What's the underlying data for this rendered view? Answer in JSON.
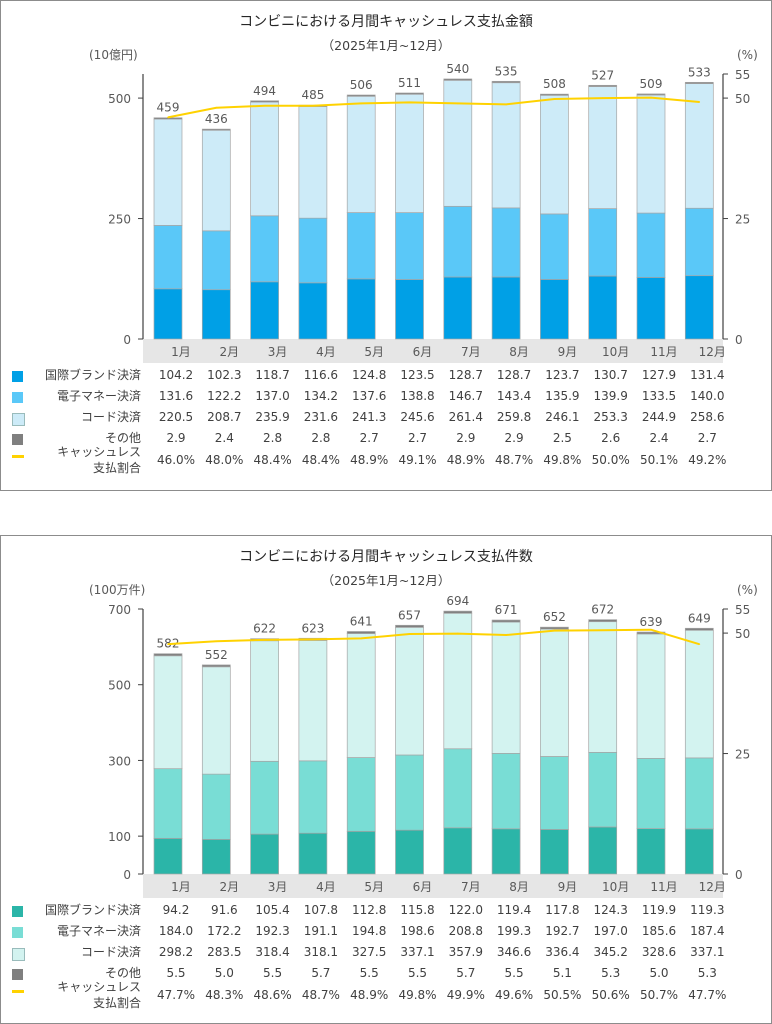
{
  "chart_data": [
    {
      "type": "bar",
      "title": "コンビニにおける月間キャッシュレス支払金額",
      "subtitle": "（2025年1月~12月）",
      "ylabel": "(10億円)",
      "y2label": "(%)",
      "ylim": [
        0,
        550
      ],
      "yticks": [
        0,
        250,
        500
      ],
      "y2lim": [
        0,
        55
      ],
      "y2ticks": [
        0,
        25,
        50,
        55
      ],
      "categories": [
        "1月",
        "2月",
        "3月",
        "4月",
        "5月",
        "6月",
        "7月",
        "8月",
        "9月",
        "10月",
        "11月",
        "12月"
      ],
      "series": [
        {
          "name": "国際ブランド決済",
          "color": "#00a0e6",
          "values": [
            104.2,
            102.3,
            118.7,
            116.6,
            124.8,
            123.5,
            128.7,
            128.7,
            123.7,
            130.7,
            127.9,
            131.4
          ]
        },
        {
          "name": "電子マネー決済",
          "color": "#5ac8f8",
          "values": [
            131.6,
            122.2,
            137.0,
            134.2,
            137.6,
            138.8,
            146.7,
            143.4,
            135.9,
            139.9,
            133.5,
            140.0
          ]
        },
        {
          "name": "コード決済",
          "color": "#cdebf8",
          "values": [
            220.5,
            208.7,
            235.9,
            231.6,
            241.3,
            245.6,
            261.4,
            259.8,
            246.1,
            253.3,
            244.9,
            258.6
          ]
        },
        {
          "name": "その他",
          "color": "#7f7f7f",
          "values": [
            2.9,
            2.4,
            2.8,
            2.8,
            2.7,
            2.7,
            2.9,
            2.9,
            2.5,
            2.6,
            2.4,
            2.7
          ]
        }
      ],
      "totals": [
        "459",
        "436",
        "494",
        "485",
        "506",
        "511",
        "540",
        "535",
        "508",
        "527",
        "509",
        "533"
      ],
      "line": {
        "name": [
          "キャッシュレス",
          "支払割合"
        ],
        "color": "#ffd200",
        "values": [
          46.0,
          48.0,
          48.4,
          48.4,
          48.9,
          49.1,
          48.9,
          48.7,
          49.8,
          50.0,
          50.1,
          49.2
        ],
        "labels": [
          "46.0%",
          "48.0%",
          "48.4%",
          "48.4%",
          "48.9%",
          "49.1%",
          "48.9%",
          "48.7%",
          "49.8%",
          "50.0%",
          "50.1%",
          "49.2%"
        ]
      },
      "value_labels": [
        [
          "104.2",
          "102.3",
          "118.7",
          "116.6",
          "124.8",
          "123.5",
          "128.7",
          "128.7",
          "123.7",
          "130.7",
          "127.9",
          "131.4"
        ],
        [
          "131.6",
          "122.2",
          "137.0",
          "134.2",
          "137.6",
          "138.8",
          "146.7",
          "143.4",
          "135.9",
          "139.9",
          "133.5",
          "140.0"
        ],
        [
          "220.5",
          "208.7",
          "235.9",
          "231.6",
          "241.3",
          "245.6",
          "261.4",
          "259.8",
          "246.1",
          "253.3",
          "244.9",
          "258.6"
        ],
        [
          "2.9",
          "2.4",
          "2.8",
          "2.8",
          "2.7",
          "2.7",
          "2.9",
          "2.9",
          "2.5",
          "2.6",
          "2.4",
          "2.7"
        ]
      ]
    },
    {
      "type": "bar",
      "title": "コンビニにおける月間キャッシュレス支払件数",
      "subtitle": "（2025年1月~12月）",
      "ylabel": "(100万件)",
      "y2label": "(%)",
      "ylim": [
        0,
        700
      ],
      "yticks": [
        0,
        100,
        300,
        500,
        700
      ],
      "y2lim": [
        0,
        55
      ],
      "y2ticks": [
        0,
        25,
        50,
        55
      ],
      "categories": [
        "1月",
        "2月",
        "3月",
        "4月",
        "5月",
        "6月",
        "7月",
        "8月",
        "9月",
        "10月",
        "11月",
        "12月"
      ],
      "series": [
        {
          "name": "国際ブランド決済",
          "color": "#2bb5a8",
          "values": [
            94.2,
            91.6,
            105.4,
            107.8,
            112.8,
            115.8,
            122.0,
            119.4,
            117.8,
            124.3,
            119.9,
            119.3
          ]
        },
        {
          "name": "電子マネー決済",
          "color": "#79ddd5",
          "values": [
            184.0,
            172.2,
            192.3,
            191.1,
            194.8,
            198.6,
            208.8,
            199.3,
            192.7,
            197.0,
            185.6,
            187.4
          ]
        },
        {
          "name": "コード決済",
          "color": "#d3f3f0",
          "values": [
            298.2,
            283.5,
            318.4,
            318.1,
            327.5,
            337.1,
            357.9,
            346.6,
            336.4,
            345.2,
            328.6,
            337.1
          ]
        },
        {
          "name": "その他",
          "color": "#7f7f7f",
          "values": [
            5.5,
            5.0,
            5.5,
            5.7,
            5.5,
            5.5,
            5.7,
            5.5,
            5.1,
            5.3,
            5.0,
            5.3
          ]
        }
      ],
      "totals": [
        "582",
        "552",
        "622",
        "623",
        "641",
        "657",
        "694",
        "671",
        "652",
        "672",
        "639",
        "649"
      ],
      "line": {
        "name": [
          "キャッシュレス",
          "支払割合"
        ],
        "color": "#ffd200",
        "values": [
          47.7,
          48.3,
          48.6,
          48.7,
          48.9,
          49.8,
          49.9,
          49.6,
          50.5,
          50.6,
          50.7,
          47.7
        ],
        "labels": [
          "47.7%",
          "48.3%",
          "48.6%",
          "48.7%",
          "48.9%",
          "49.8%",
          "49.9%",
          "49.6%",
          "50.5%",
          "50.6%",
          "50.7%",
          "47.7%"
        ]
      },
      "value_labels": [
        [
          "94.2",
          "91.6",
          "105.4",
          "107.8",
          "112.8",
          "115.8",
          "122.0",
          "119.4",
          "117.8",
          "124.3",
          "119.9",
          "119.3"
        ],
        [
          "184.0",
          "172.2",
          "192.3",
          "191.1",
          "194.8",
          "198.6",
          "208.8",
          "199.3",
          "192.7",
          "197.0",
          "185.6",
          "187.4"
        ],
        [
          "298.2",
          "283.5",
          "318.4",
          "318.1",
          "327.5",
          "337.1",
          "357.9",
          "346.6",
          "336.4",
          "345.2",
          "328.6",
          "337.1"
        ],
        [
          "5.5",
          "5.0",
          "5.5",
          "5.7",
          "5.5",
          "5.5",
          "5.7",
          "5.5",
          "5.1",
          "5.3",
          "5.0",
          "5.3"
        ]
      ]
    }
  ]
}
